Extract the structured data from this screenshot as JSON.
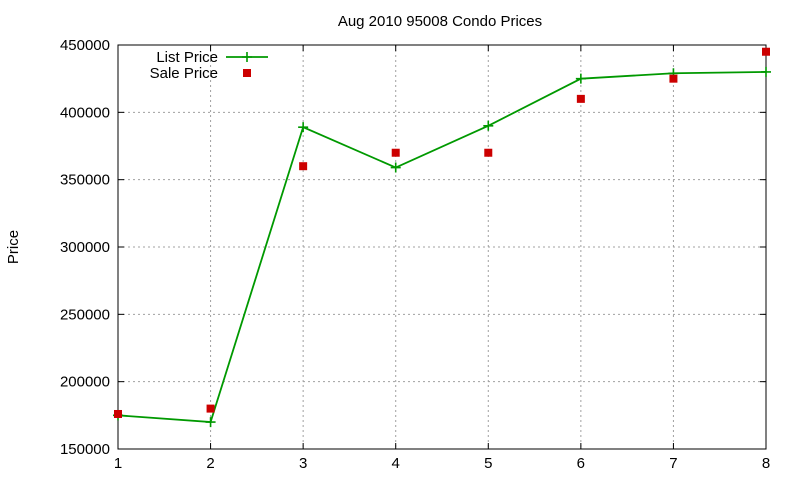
{
  "chart_data": {
    "type": "line",
    "title": "Aug 2010 95008 Condo Prices",
    "xlabel": "",
    "ylabel": "Price",
    "x": [
      1,
      2,
      3,
      4,
      5,
      6,
      7,
      8
    ],
    "xlim": [
      1,
      8
    ],
    "ylim": [
      150000,
      450000
    ],
    "xticks": [
      "1",
      "2",
      "3",
      "4",
      "5",
      "6",
      "7",
      "8"
    ],
    "yticks": [
      "150000",
      "200000",
      "250000",
      "300000",
      "350000",
      "400000",
      "450000"
    ],
    "grid": true,
    "legend_position": "top-left",
    "series": [
      {
        "name": "List Price",
        "style": "linespoints",
        "marker": "plus",
        "color": "#009900",
        "x": [
          1,
          2,
          3,
          4,
          5,
          6,
          7,
          8
        ],
        "values": [
          175000,
          170000,
          389000,
          359000,
          390000,
          425000,
          429000,
          430000
        ]
      },
      {
        "name": "Sale Price",
        "style": "points",
        "marker": "square",
        "color": "#cc0000",
        "x": [
          1,
          2,
          3,
          4,
          5,
          6,
          7,
          8
        ],
        "values": [
          176000,
          180000,
          360000,
          370000,
          370000,
          410000,
          425000,
          445000
        ]
      }
    ]
  }
}
